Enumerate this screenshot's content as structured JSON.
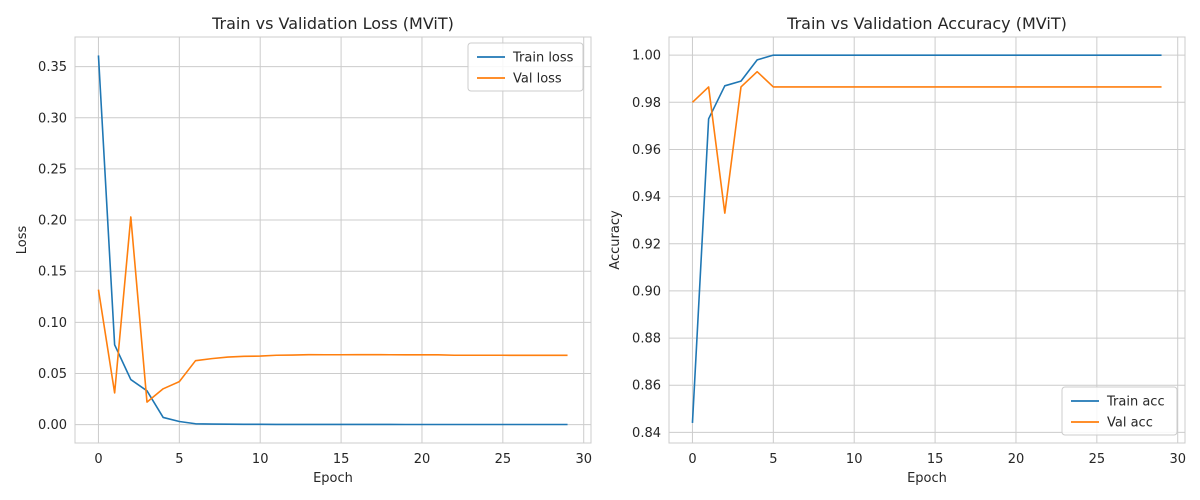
{
  "chart_data": [
    {
      "type": "line",
      "title": "Train vs Validation Loss (MViT)",
      "xlabel": "Epoch",
      "ylabel": "Loss",
      "xlim": [
        -1.45,
        30.45
      ],
      "ylim": [
        -0.018,
        0.379
      ],
      "xticks": [
        0,
        5,
        10,
        15,
        20,
        25,
        30
      ],
      "yticks": [
        0.0,
        0.05,
        0.1,
        0.15,
        0.2,
        0.25,
        0.3,
        0.35
      ],
      "ytick_decimals": 2,
      "grid": true,
      "legend": "top-right",
      "x": [
        0,
        1,
        2,
        3,
        4,
        5,
        6,
        7,
        8,
        9,
        10,
        11,
        12,
        13,
        14,
        15,
        16,
        17,
        18,
        19,
        20,
        21,
        22,
        23,
        24,
        25,
        26,
        27,
        28,
        29
      ],
      "series": [
        {
          "name": "Train loss",
          "color": "#1f77b4",
          "values": [
            0.361,
            0.078,
            0.044,
            0.033,
            0.007,
            0.003,
            0.0008,
            0.0005,
            0.0004,
            0.0003,
            0.0003,
            0.0002,
            0.0002,
            0.0002,
            0.0002,
            0.0002,
            0.0002,
            0.0002,
            0.0002,
            0.0001,
            0.0001,
            0.0001,
            0.0001,
            0.0001,
            0.0001,
            0.0001,
            0.0001,
            0.0001,
            0.0001,
            0.0001
          ]
        },
        {
          "name": "Val loss",
          "color": "#ff7f0e",
          "values": [
            0.132,
            0.031,
            0.203,
            0.022,
            0.035,
            0.042,
            0.0625,
            0.0645,
            0.066,
            0.0668,
            0.067,
            0.0678,
            0.068,
            0.0684,
            0.0683,
            0.0683,
            0.0684,
            0.0684,
            0.0683,
            0.0682,
            0.0682,
            0.0682,
            0.0678,
            0.0678,
            0.0678,
            0.0678,
            0.0677,
            0.0677,
            0.0677,
            0.0677
          ]
        }
      ]
    },
    {
      "type": "line",
      "title": "Train vs Validation Accuracy (MViT)",
      "xlabel": "Epoch",
      "ylabel": "Accuracy",
      "xlim": [
        -1.45,
        30.45
      ],
      "ylim": [
        0.8355,
        1.0077
      ],
      "xticks": [
        0,
        5,
        10,
        15,
        20,
        25,
        30
      ],
      "yticks": [
        0.84,
        0.86,
        0.88,
        0.9,
        0.92,
        0.94,
        0.96,
        0.98,
        1.0
      ],
      "ytick_decimals": 2,
      "grid": true,
      "legend": "bottom-right",
      "x": [
        0,
        1,
        2,
        3,
        4,
        5,
        6,
        7,
        8,
        9,
        10,
        11,
        12,
        13,
        14,
        15,
        16,
        17,
        18,
        19,
        20,
        21,
        22,
        23,
        24,
        25,
        26,
        27,
        28,
        29
      ],
      "series": [
        {
          "name": "Train acc",
          "color": "#1f77b4",
          "values": [
            0.844,
            0.973,
            0.987,
            0.989,
            0.998,
            1.0,
            1.0,
            1.0,
            1.0,
            1.0,
            1.0,
            1.0,
            1.0,
            1.0,
            1.0,
            1.0,
            1.0,
            1.0,
            1.0,
            1.0,
            1.0,
            1.0,
            1.0,
            1.0,
            1.0,
            1.0,
            1.0,
            1.0,
            1.0,
            1.0
          ]
        },
        {
          "name": "Val acc",
          "color": "#ff7f0e",
          "values": [
            0.98,
            0.9865,
            0.933,
            0.9865,
            0.993,
            0.9865,
            0.9865,
            0.9865,
            0.9865,
            0.9865,
            0.9865,
            0.9865,
            0.9865,
            0.9865,
            0.9865,
            0.9865,
            0.9865,
            0.9865,
            0.9865,
            0.9865,
            0.9865,
            0.9865,
            0.9865,
            0.9865,
            0.9865,
            0.9865,
            0.9865,
            0.9865,
            0.9865,
            0.9865
          ]
        }
      ]
    }
  ]
}
